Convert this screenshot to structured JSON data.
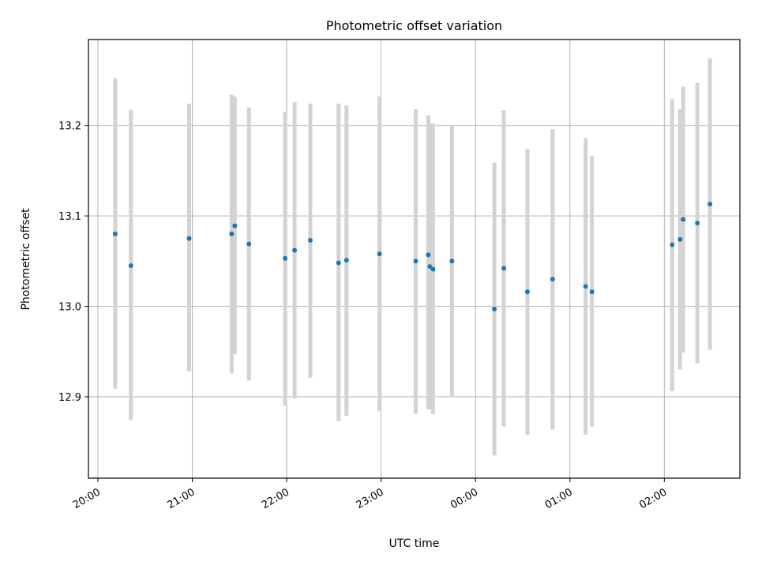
{
  "chart_data": {
    "type": "scatter",
    "title": "Photometric offset variation",
    "xlabel": "UTC time",
    "ylabel": "Photometric offset",
    "grid": true,
    "x_axis": {
      "unit": "time",
      "range_hours_from_20": [
        -0.1,
        6.8
      ],
      "ticks": [
        {
          "hour": 0,
          "label": "20:00"
        },
        {
          "hour": 1,
          "label": "21:00"
        },
        {
          "hour": 2,
          "label": "22:00"
        },
        {
          "hour": 3,
          "label": "23:00"
        },
        {
          "hour": 4,
          "label": "00:00"
        },
        {
          "hour": 5,
          "label": "01:00"
        },
        {
          "hour": 6,
          "label": "02:00"
        }
      ]
    },
    "y_axis": {
      "range": [
        12.81,
        13.295
      ],
      "ticks": [
        {
          "value": 12.9,
          "label": "12.9"
        },
        {
          "value": 13.0,
          "label": "13.0"
        },
        {
          "value": 13.1,
          "label": "13.1"
        },
        {
          "value": 13.2,
          "label": "13.2"
        }
      ]
    },
    "colors": {
      "point": "#1f77b4",
      "errorbar": "#d3d3d3",
      "grid": "#b0b0b0"
    },
    "points": [
      {
        "time": "20:11",
        "y": 13.08,
        "lo": 12.909,
        "hi": 13.252
      },
      {
        "time": "20:21",
        "y": 13.045,
        "lo": 12.874,
        "hi": 13.217
      },
      {
        "time": "20:58",
        "y": 13.075,
        "lo": 12.928,
        "hi": 13.224
      },
      {
        "time": "21:25",
        "y": 13.08,
        "lo": 12.926,
        "hi": 13.234
      },
      {
        "time": "21:27",
        "y": 13.089,
        "lo": 12.947,
        "hi": 13.232
      },
      {
        "time": "21:36",
        "y": 13.069,
        "lo": 12.918,
        "hi": 13.22
      },
      {
        "time": "21:59",
        "y": 13.053,
        "lo": 12.89,
        "hi": 13.215
      },
      {
        "time": "22:05",
        "y": 13.062,
        "lo": 12.898,
        "hi": 13.226
      },
      {
        "time": "22:15",
        "y": 13.073,
        "lo": 12.921,
        "hi": 13.224
      },
      {
        "time": "22:33",
        "y": 13.048,
        "lo": 12.873,
        "hi": 13.224
      },
      {
        "time": "22:38",
        "y": 13.051,
        "lo": 12.879,
        "hi": 13.222
      },
      {
        "time": "22:59",
        "y": 13.058,
        "lo": 12.884,
        "hi": 13.232
      },
      {
        "time": "23:22",
        "y": 13.05,
        "lo": 12.881,
        "hi": 13.218
      },
      {
        "time": "23:30",
        "y": 13.057,
        "lo": 12.886,
        "hi": 13.211
      },
      {
        "time": "23:31",
        "y": 13.044,
        "lo": 12.886,
        "hi": 13.202
      },
      {
        "time": "23:33",
        "y": 13.041,
        "lo": 12.881,
        "hi": 13.202
      },
      {
        "time": "23:45",
        "y": 13.05,
        "lo": 12.901,
        "hi": 13.199
      },
      {
        "time": "00:12",
        "y": 12.997,
        "lo": 12.835,
        "hi": 13.159
      },
      {
        "time": "00:18",
        "y": 13.042,
        "lo": 12.867,
        "hi": 13.217
      },
      {
        "time": "00:33",
        "y": 13.016,
        "lo": 12.858,
        "hi": 13.174
      },
      {
        "time": "00:49",
        "y": 13.03,
        "lo": 12.864,
        "hi": 13.196
      },
      {
        "time": "01:10",
        "y": 13.022,
        "lo": 12.858,
        "hi": 13.186
      },
      {
        "time": "01:14",
        "y": 13.016,
        "lo": 12.867,
        "hi": 13.166
      },
      {
        "time": "02:05",
        "y": 13.068,
        "lo": 12.906,
        "hi": 13.229
      },
      {
        "time": "02:10",
        "y": 13.074,
        "lo": 12.93,
        "hi": 13.218
      },
      {
        "time": "02:12",
        "y": 13.096,
        "lo": 12.949,
        "hi": 13.243
      },
      {
        "time": "02:21",
        "y": 13.092,
        "lo": 12.937,
        "hi": 13.247
      },
      {
        "time": "02:29",
        "y": 13.113,
        "lo": 12.952,
        "hi": 13.274
      }
    ]
  }
}
